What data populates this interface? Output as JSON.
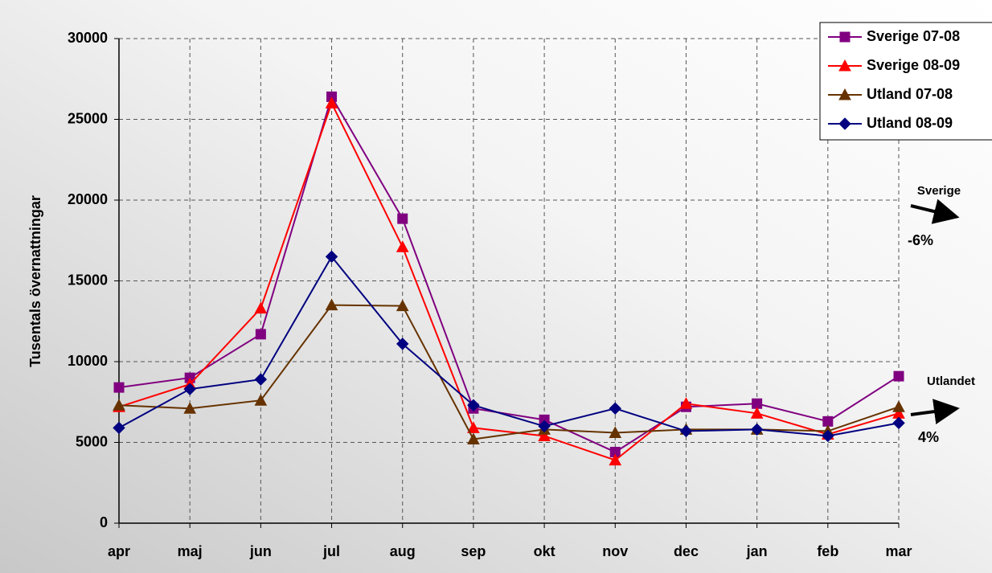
{
  "chart_data": {
    "type": "line",
    "y_label": "Tusentals övernattningar",
    "categories": [
      "apr",
      "maj",
      "jun",
      "jul",
      "aug",
      "sep",
      "okt",
      "nov",
      "dec",
      "jan",
      "feb",
      "mar"
    ],
    "series": [
      {
        "name": "Sverige 07-08",
        "color": "#800080",
        "marker": "square",
        "values": [
          8400,
          9000,
          11700,
          26400,
          18850,
          7100,
          6400,
          4400,
          7200,
          7400,
          6300,
          9100
        ]
      },
      {
        "name": "Sverige 08-09",
        "color": "#ff0000",
        "marker": "triangle",
        "values": [
          7200,
          8600,
          13300,
          26000,
          17100,
          5900,
          5400,
          3900,
          7400,
          6800,
          5500,
          6800
        ]
      },
      {
        "name": "Utland 07-08",
        "color": "#663300",
        "marker": "triangle",
        "values": [
          7300,
          7100,
          7600,
          13500,
          13450,
          5200,
          5800,
          5600,
          5800,
          5800,
          5700,
          7200
        ]
      },
      {
        "name": "Utland 08-09",
        "color": "#000080",
        "marker": "diamond",
        "values": [
          5900,
          8300,
          8900,
          16500,
          11100,
          7300,
          6000,
          7100,
          5700,
          5800,
          5400,
          6200
        ]
      }
    ],
    "ylim": [
      0,
      30000
    ],
    "yticks": [
      0,
      5000,
      10000,
      15000,
      20000,
      25000,
      30000
    ],
    "grid": true,
    "annotations": [
      "Sverige",
      "-6%",
      "Utlandet",
      "4%"
    ],
    "legend": "top-right"
  }
}
